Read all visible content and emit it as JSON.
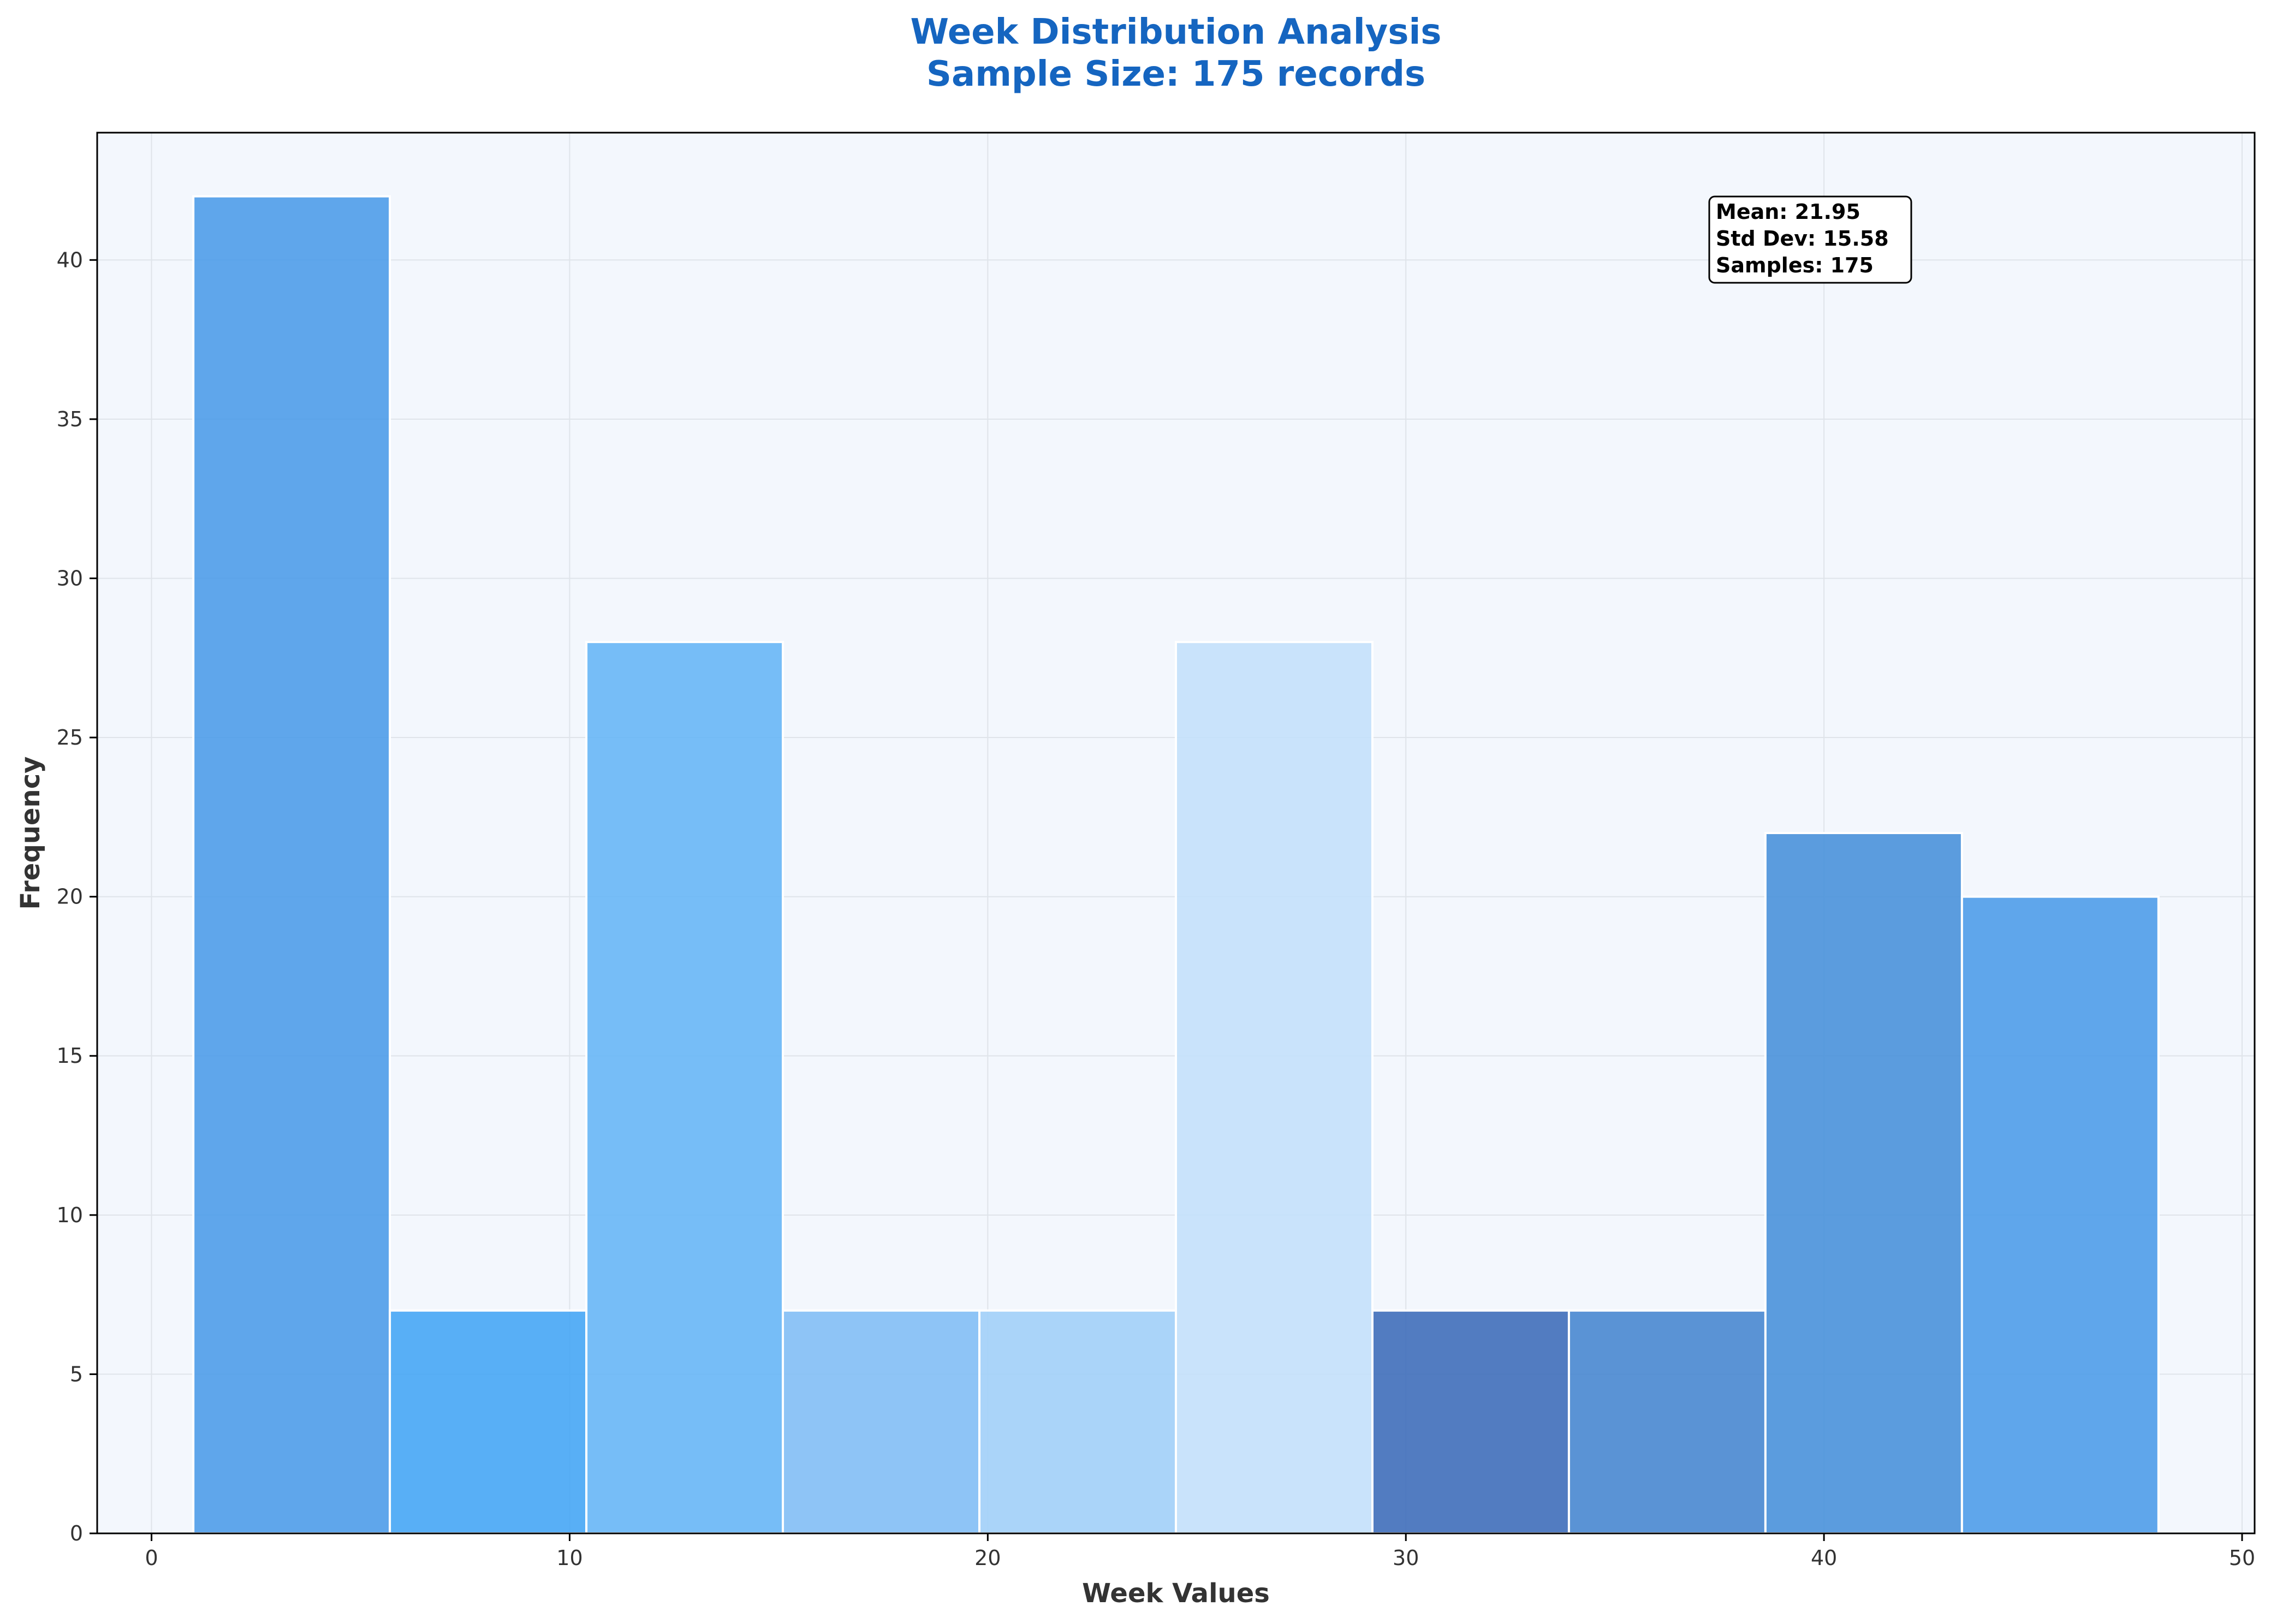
{
  "chart_data": {
    "type": "bar",
    "title": "Week Distribution Analysis",
    "subtitle": "Sample Size: 175 records",
    "xlabel": "Week Values",
    "ylabel": "Frequency",
    "xlim": [
      -1.3,
      50.3
    ],
    "ylim": [
      0,
      44
    ],
    "xticks": [
      "0",
      "10",
      "20",
      "30",
      "40",
      "50"
    ],
    "yticks": [
      "0",
      "5",
      "10",
      "15",
      "20",
      "25",
      "30",
      "35",
      "40"
    ],
    "grid": true,
    "bins": [
      {
        "x_start": 1.0,
        "x_end": 5.7,
        "value": 42,
        "color": "#4a9be8"
      },
      {
        "x_start": 5.7,
        "x_end": 10.4,
        "value": 7,
        "color": "#42a5f5"
      },
      {
        "x_start": 10.4,
        "x_end": 15.1,
        "value": 28,
        "color": "#64b5f6"
      },
      {
        "x_start": 15.1,
        "x_end": 19.8,
        "value": 7,
        "color": "#7fbdf5"
      },
      {
        "x_start": 19.8,
        "x_end": 24.5,
        "value": 7,
        "color": "#9fcff8"
      },
      {
        "x_start": 24.5,
        "x_end": 29.2,
        "value": 28,
        "color": "#c3e0fa"
      },
      {
        "x_start": 29.2,
        "x_end": 33.9,
        "value": 7,
        "color": "#3b6bb8"
      },
      {
        "x_start": 33.9,
        "x_end": 38.6,
        "value": 7,
        "color": "#4485cf"
      },
      {
        "x_start": 38.6,
        "x_end": 43.3,
        "value": 22,
        "color": "#4590d9"
      },
      {
        "x_start": 43.3,
        "x_end": 48.0,
        "value": 20,
        "color": "#4a9be8"
      }
    ],
    "stats": {
      "mean": "Mean: 21.95",
      "std": "Std Dev: 15.58",
      "samples": "Samples: 175"
    }
  },
  "colors": {
    "title": "#1565c0",
    "plot_background": "#f3f7fd"
  }
}
